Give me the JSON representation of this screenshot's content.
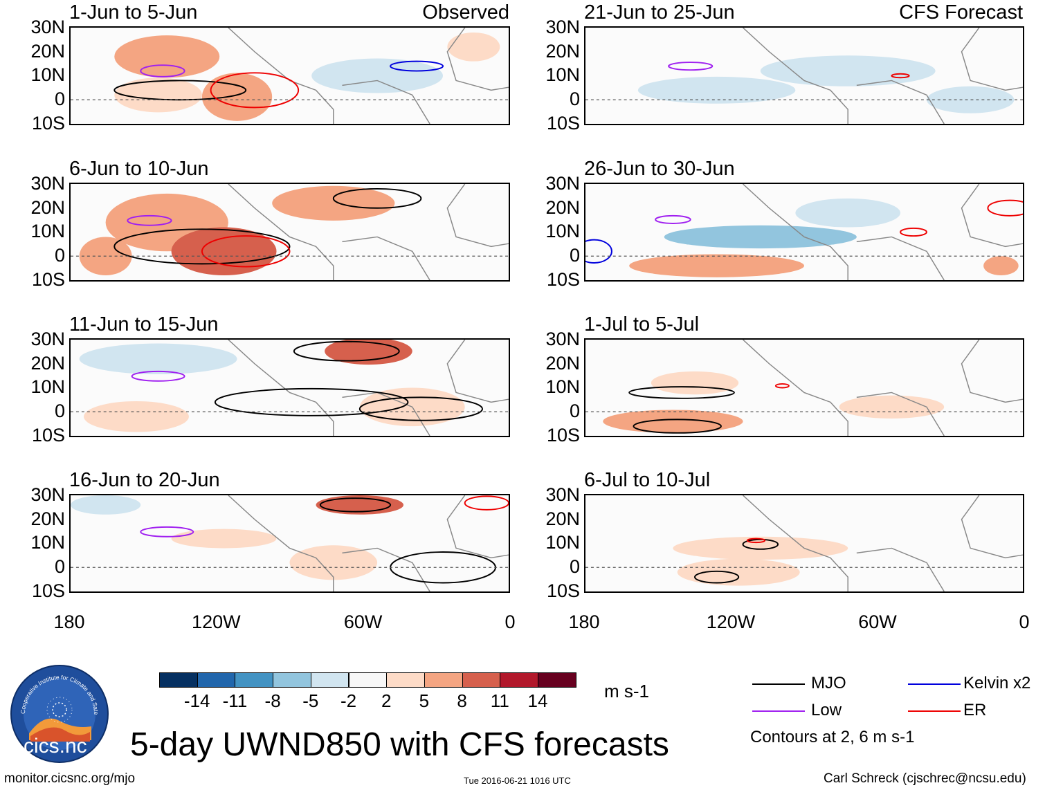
{
  "title": "5-day UWND850 with CFS forecasts",
  "units": "m s-1",
  "labels": {
    "observed": "Observed",
    "forecast": "CFS Forecast"
  },
  "observed_panels": [
    {
      "period": "1-Jun to 5-Jun"
    },
    {
      "period": "6-Jun to 10-Jun"
    },
    {
      "period": "11-Jun to 15-Jun"
    },
    {
      "period": "16-Jun to 20-Jun"
    }
  ],
  "forecast_panels": [
    {
      "period": "21-Jun to 25-Jun"
    },
    {
      "period": "26-Jun to 30-Jun"
    },
    {
      "period": "1-Jul to 5-Jul"
    },
    {
      "period": "6-Jul to 10-Jul"
    }
  ],
  "lat_ticks": [
    "30N",
    "20N",
    "10N",
    "0",
    "10S"
  ],
  "lon_ticks": [
    "180",
    "120W",
    "60W",
    "0"
  ],
  "colorbar": {
    "ticks": [
      "-14",
      "-11",
      "-8",
      "-5",
      "-2",
      "2",
      "5",
      "8",
      "11",
      "14"
    ],
    "colors": [
      "#053061",
      "#2166ac",
      "#4393c3",
      "#92c5de",
      "#d1e5f0",
      "#f7f7f7",
      "#fddbc7",
      "#f4a582",
      "#d6604d",
      "#b2182b",
      "#67001f"
    ]
  },
  "legend": {
    "mjo": {
      "label": "MJO",
      "color": "#000000"
    },
    "kelvin": {
      "label": "Kelvin x2",
      "color": "#0000dd"
    },
    "low": {
      "label": "Low",
      "color": "#a020f0"
    },
    "er": {
      "label": "ER",
      "color": "#ee0000"
    },
    "note": "Contours at 2, 6 m s-1"
  },
  "logo_text": "cics.nc",
  "logo_arc_text": "Cooperative Institute for Climate and Satellites",
  "footer": {
    "url": "monitor.cicsnc.org/mjo",
    "timestamp": "Tue 2016-06-21 1016 UTC",
    "author": "Carl Schreck (cjschrec@ncsu.edu)"
  }
}
